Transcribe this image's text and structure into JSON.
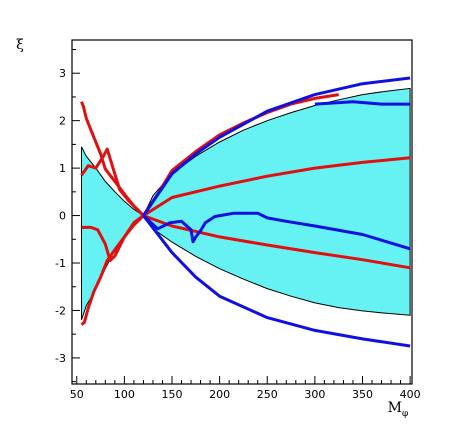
{
  "chart_data": {
    "type": "line",
    "title": "",
    "xlabel": "M",
    "xlabel_sub": "φ",
    "ylabel": "ξ",
    "xlim": [
      45,
      402
    ],
    "ylim": [
      -3.55,
      3.7
    ],
    "x_ticks": [
      50,
      100,
      150,
      200,
      250,
      300,
      350,
      400
    ],
    "y_ticks": [
      -3,
      -2,
      -1,
      0,
      1,
      2,
      3
    ],
    "grid": false,
    "legend": "none",
    "colors": {
      "band": "#66f2f2",
      "outline": "#000000",
      "red": "#e01010",
      "blue": "#1010e0"
    },
    "band": {
      "upper": [
        [
          55,
          1.45
        ],
        [
          60,
          1.25
        ],
        [
          70,
          1.0
        ],
        [
          80,
          0.72
        ],
        [
          90,
          0.5
        ],
        [
          100,
          0.3
        ],
        [
          110,
          0.13
        ],
        [
          120,
          0.0
        ],
        [
          130,
          0.42
        ],
        [
          150,
          0.88
        ],
        [
          175,
          1.25
        ],
        [
          200,
          1.55
        ],
        [
          225,
          1.8
        ],
        [
          250,
          2.0
        ],
        [
          275,
          2.17
        ],
        [
          300,
          2.32
        ],
        [
          325,
          2.44
        ],
        [
          350,
          2.55
        ],
        [
          375,
          2.62
        ],
        [
          400,
          2.68
        ]
      ],
      "lower": [
        [
          55,
          -2.2
        ],
        [
          60,
          -1.9
        ],
        [
          70,
          -1.55
        ],
        [
          80,
          -1.12
        ],
        [
          90,
          -0.72
        ],
        [
          100,
          -0.42
        ],
        [
          110,
          -0.2
        ],
        [
          120,
          0.0
        ],
        [
          130,
          -0.28
        ],
        [
          150,
          -0.56
        ],
        [
          175,
          -0.86
        ],
        [
          200,
          -1.12
        ],
        [
          225,
          -1.34
        ],
        [
          250,
          -1.54
        ],
        [
          275,
          -1.7
        ],
        [
          300,
          -1.84
        ],
        [
          325,
          -1.94
        ],
        [
          350,
          -2.01
        ],
        [
          375,
          -2.06
        ],
        [
          400,
          -2.1
        ]
      ]
    },
    "series": [
      {
        "color": "red",
        "points": [
          [
            55,
            2.4
          ],
          [
            57,
            2.3
          ],
          [
            60,
            2.05
          ],
          [
            65,
            1.8
          ],
          [
            70,
            1.55
          ],
          [
            75,
            1.3
          ],
          [
            80,
            0.98
          ],
          [
            90,
            0.72
          ],
          [
            100,
            0.45
          ],
          [
            110,
            0.2
          ],
          [
            120,
            0.0
          ]
        ]
      },
      {
        "color": "red",
        "points": [
          [
            55,
            -2.3
          ],
          [
            58,
            -2.25
          ],
          [
            62,
            -1.95
          ],
          [
            68,
            -1.6
          ],
          [
            75,
            -1.3
          ],
          [
            82,
            -0.95
          ],
          [
            90,
            -0.72
          ],
          [
            100,
            -0.45
          ],
          [
            110,
            -0.2
          ],
          [
            120,
            0.0
          ]
        ]
      },
      {
        "color": "red",
        "points": [
          [
            55,
            0.85
          ],
          [
            62,
            1.05
          ],
          [
            70,
            1.0
          ],
          [
            78,
            1.25
          ],
          [
            82,
            1.4
          ],
          [
            88,
            1.0
          ],
          [
            95,
            0.55
          ],
          [
            105,
            0.3
          ],
          [
            115,
            0.1
          ],
          [
            120,
            0.0
          ]
        ]
      },
      {
        "color": "red",
        "points": [
          [
            55,
            -0.25
          ],
          [
            65,
            -0.25
          ],
          [
            72,
            -0.3
          ],
          [
            80,
            -0.6
          ],
          [
            85,
            -0.95
          ],
          [
            90,
            -0.85
          ],
          [
            100,
            -0.45
          ],
          [
            110,
            -0.15
          ],
          [
            120,
            0.0
          ]
        ]
      },
      {
        "color": "red",
        "points": [
          [
            120,
            0.0
          ],
          [
            150,
            0.38
          ],
          [
            200,
            0.62
          ],
          [
            250,
            0.83
          ],
          [
            300,
            1.0
          ],
          [
            350,
            1.12
          ],
          [
            400,
            1.22
          ]
        ]
      },
      {
        "color": "red",
        "points": [
          [
            120,
            0.0
          ],
          [
            150,
            -0.22
          ],
          [
            200,
            -0.45
          ],
          [
            250,
            -0.62
          ],
          [
            300,
            -0.78
          ],
          [
            350,
            -0.93
          ],
          [
            400,
            -1.1
          ]
        ]
      },
      {
        "color": "red",
        "points": [
          [
            120,
            0.0
          ],
          [
            135,
            0.45
          ],
          [
            150,
            0.95
          ],
          [
            175,
            1.35
          ],
          [
            200,
            1.7
          ],
          [
            225,
            1.95
          ],
          [
            250,
            2.17
          ],
          [
            275,
            2.35
          ],
          [
            300,
            2.47
          ],
          [
            325,
            2.55
          ]
        ]
      },
      {
        "color": "blue",
        "points": [
          [
            120,
            0.0
          ],
          [
            150,
            0.88
          ],
          [
            175,
            1.3
          ],
          [
            200,
            1.65
          ],
          [
            250,
            2.2
          ],
          [
            300,
            2.55
          ],
          [
            350,
            2.78
          ],
          [
            400,
            2.9
          ]
        ]
      },
      {
        "color": "blue",
        "points": [
          [
            120,
            0.0
          ],
          [
            150,
            -0.78
          ],
          [
            175,
            -1.3
          ],
          [
            200,
            -1.7
          ],
          [
            250,
            -2.15
          ],
          [
            300,
            -2.42
          ],
          [
            350,
            -2.6
          ],
          [
            400,
            -2.75
          ]
        ]
      },
      {
        "color": "blue",
        "points": [
          [
            120,
            0.0
          ],
          [
            135,
            -0.28
          ],
          [
            148,
            -0.15
          ],
          [
            160,
            -0.12
          ],
          [
            170,
            -0.3
          ],
          [
            172,
            -0.55
          ],
          [
            175,
            -0.45
          ],
          [
            180,
            -0.32
          ],
          [
            185,
            -0.15
          ],
          [
            195,
            -0.02
          ],
          [
            215,
            0.05
          ],
          [
            240,
            0.05
          ],
          [
            250,
            -0.05
          ],
          [
            270,
            -0.12
          ],
          [
            300,
            -0.22
          ],
          [
            350,
            -0.4
          ],
          [
            400,
            -0.7
          ]
        ]
      },
      {
        "color": "blue",
        "points": [
          [
            300,
            2.35
          ],
          [
            340,
            2.4
          ],
          [
            370,
            2.35
          ],
          [
            400,
            2.35
          ]
        ]
      }
    ]
  }
}
